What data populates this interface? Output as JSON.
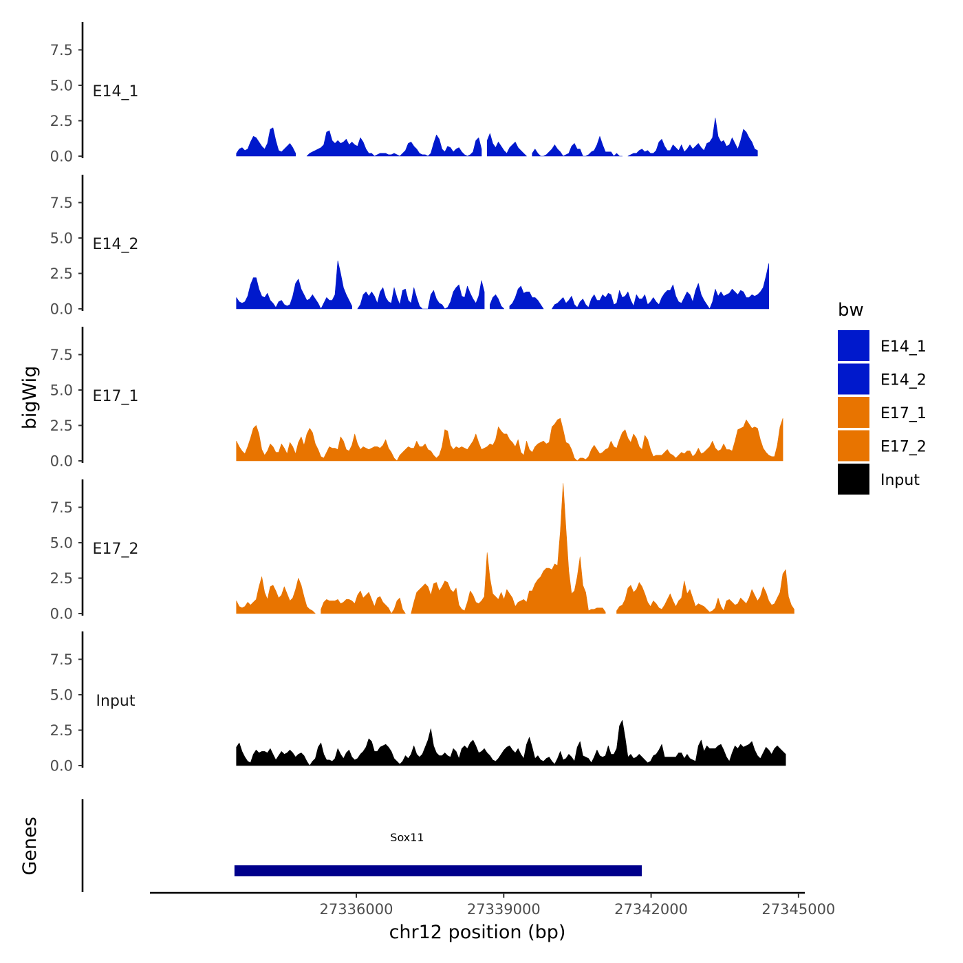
{
  "chart_data": {
    "type": "area",
    "title": "",
    "xlabel": "chr12 position (bp)",
    "ylabel": "bigWig",
    "genes_label": "Genes",
    "xlim": [
      27331800,
      27345100
    ],
    "ylim": [
      0,
      9.6
    ],
    "x_ticks": [
      27336000,
      27339000,
      27342000,
      27345000
    ],
    "x_tick_labels": [
      "27336000",
      "27339000",
      "27342000",
      "27345000"
    ],
    "y_ticks": [
      0,
      2.5,
      5,
      7.5
    ],
    "y_tick_labels": [
      "0.0",
      "2.5",
      "5.0",
      "7.5"
    ],
    "legend": {
      "title": "bw",
      "position": "right",
      "entries": [
        {
          "label": "E14_1",
          "color": "#0019CC"
        },
        {
          "label": "E14_2",
          "color": "#0019CC"
        },
        {
          "label": "E17_1",
          "color": "#E87400"
        },
        {
          "label": "E17_2",
          "color": "#E87400"
        },
        {
          "label": "Input",
          "color": "#000000"
        }
      ]
    },
    "gene": {
      "name": "Sox11",
      "start": 27333520,
      "end": 27341810,
      "color": "#00008B"
    },
    "x_start": 27333560,
    "x_step": 57.33,
    "series": [
      {
        "name": "E14_1",
        "color": "#0019CC",
        "values": [
          0.2,
          0.5,
          0.6,
          0.4,
          0.5,
          1.0,
          1.4,
          1.3,
          1.0,
          0.7,
          0.5,
          0.9,
          1.9,
          2.0,
          1.1,
          0.4,
          0.3,
          0.5,
          0.7,
          0.9,
          0.6,
          0.2,
          null,
          null,
          null,
          0.0,
          0.2,
          0.3,
          0.4,
          0.5,
          0.6,
          0.8,
          1.7,
          1.8,
          1.1,
          0.9,
          1.1,
          0.9,
          1.0,
          1.2,
          0.8,
          1.0,
          0.8,
          0.7,
          1.3,
          1.0,
          0.5,
          0.2,
          0.2,
          0.0,
          0.1,
          0.2,
          0.2,
          0.2,
          0.1,
          0.1,
          0.2,
          0.1,
          0.0,
          0.2,
          0.4,
          0.9,
          1.0,
          0.7,
          0.5,
          0.2,
          0.1,
          0.1,
          0.0,
          0.2,
          0.9,
          1.5,
          1.2,
          0.5,
          0.3,
          0.7,
          0.6,
          0.3,
          0.5,
          0.6,
          0.3,
          0.1,
          0.0,
          0.1,
          0.3,
          1.1,
          1.3,
          0.5,
          null,
          1.1,
          1.6,
          0.9,
          0.6,
          1.0,
          0.7,
          0.4,
          0.2,
          0.6,
          0.8,
          1.0,
          0.6,
          0.4,
          0.2,
          0.0,
          null,
          0.2,
          0.5,
          0.2,
          0.0,
          0.0,
          0.1,
          0.3,
          0.5,
          0.8,
          0.5,
          0.3,
          0.0,
          0.1,
          0.2,
          0.7,
          0.9,
          0.5,
          0.5,
          0.0,
          0.0,
          0.1,
          0.3,
          0.4,
          0.8,
          1.4,
          0.8,
          0.3,
          0.3,
          0.3,
          0.0,
          0.2,
          0.0,
          0.0,
          null,
          0.0,
          0.1,
          0.2,
          0.2,
          0.4,
          0.5,
          0.3,
          0.4,
          0.2,
          0.2,
          0.4,
          1.0,
          1.2,
          0.7,
          0.4,
          0.4,
          0.8,
          0.6,
          0.4,
          0.8,
          0.3,
          0.5,
          0.8,
          0.5,
          0.7,
          0.9,
          0.6,
          0.4,
          0.9,
          1.0,
          1.3,
          2.7,
          1.4,
          1.0,
          1.1,
          0.7,
          0.8,
          1.3,
          0.9,
          0.5,
          1.1,
          1.9,
          1.7,
          1.3,
          1.0,
          0.5,
          0.4
        ]
      },
      {
        "name": "E14_2",
        "color": "#0019CC",
        "values": [
          0.8,
          0.5,
          0.4,
          0.5,
          0.9,
          1.7,
          2.2,
          2.2,
          1.4,
          0.9,
          0.8,
          1.1,
          0.6,
          0.4,
          0.1,
          0.5,
          0.6,
          0.3,
          0.2,
          0.3,
          0.9,
          1.8,
          2.1,
          1.4,
          1.0,
          0.6,
          0.7,
          1.0,
          0.7,
          0.4,
          0.0,
          0.4,
          0.8,
          0.6,
          0.6,
          1.0,
          3.4,
          2.5,
          1.5,
          1.0,
          0.6,
          0.2,
          null,
          0.0,
          0.3,
          1.0,
          1.2,
          0.9,
          1.2,
          0.9,
          0.4,
          1.2,
          1.5,
          0.8,
          0.5,
          0.4,
          1.5,
          0.8,
          0.3,
          1.3,
          1.4,
          0.6,
          0.4,
          1.5,
          0.8,
          0.2,
          0.0,
          0.0,
          0.0,
          1.0,
          1.3,
          0.7,
          0.4,
          0.3,
          0.0,
          0.1,
          0.5,
          1.2,
          1.5,
          1.7,
          0.9,
          0.8,
          1.6,
          1.1,
          0.7,
          0.4,
          0.9,
          2.0,
          1.2,
          null,
          0.3,
          0.8,
          1.0,
          0.7,
          0.2,
          0.0,
          null,
          0.2,
          0.4,
          0.8,
          1.4,
          1.6,
          1.1,
          1.2,
          1.2,
          0.8,
          0.8,
          0.6,
          0.3,
          0.0,
          null,
          null,
          0.0,
          0.3,
          0.4,
          0.6,
          0.8,
          0.4,
          0.6,
          0.9,
          0.3,
          0.1,
          0.5,
          0.7,
          0.3,
          0.1,
          0.7,
          1.0,
          0.6,
          0.6,
          1.0,
          0.8,
          1.1,
          1.0,
          0.3,
          0.4,
          1.3,
          0.8,
          0.9,
          1.2,
          0.6,
          0.2,
          1.0,
          0.7,
          0.7,
          1.0,
          0.3,
          0.5,
          0.8,
          0.5,
          0.3,
          0.8,
          1.1,
          1.3,
          1.3,
          1.7,
          0.9,
          0.5,
          0.4,
          0.8,
          1.2,
          1.0,
          0.5,
          1.3,
          1.8,
          1.0,
          0.6,
          0.3,
          0.0,
          0.5,
          1.4,
          0.9,
          1.2,
          0.9,
          1.0,
          1.1,
          1.4,
          1.2,
          1.0,
          1.3,
          1.2,
          0.8,
          0.8,
          1.0,
          0.9,
          1.0,
          1.2,
          1.5,
          2.3,
          3.2
        ]
      },
      {
        "name": "E17_1",
        "color": "#E87400",
        "values": [
          1.4,
          1.0,
          0.7,
          0.5,
          1.0,
          1.6,
          2.3,
          2.5,
          1.9,
          0.8,
          0.4,
          0.7,
          1.2,
          1.0,
          0.6,
          0.6,
          1.2,
          0.9,
          0.5,
          1.3,
          1.0,
          0.5,
          1.3,
          1.7,
          1.1,
          1.9,
          2.3,
          2.0,
          1.2,
          0.8,
          0.3,
          0.2,
          0.6,
          1.0,
          0.9,
          0.9,
          0.8,
          1.7,
          1.4,
          0.8,
          0.7,
          1.1,
          1.9,
          1.2,
          0.8,
          1.0,
          0.9,
          0.8,
          0.9,
          1.0,
          1.0,
          0.9,
          1.1,
          1.5,
          0.9,
          0.6,
          0.2,
          0.0,
          0.4,
          0.6,
          0.8,
          1.0,
          0.9,
          0.9,
          1.4,
          1.0,
          1.0,
          1.2,
          0.8,
          0.7,
          0.4,
          0.2,
          0.4,
          1.0,
          2.2,
          2.1,
          1.1,
          0.8,
          1.0,
          0.9,
          1.0,
          0.9,
          0.8,
          1.1,
          1.4,
          1.9,
          1.3,
          0.8,
          0.9,
          1.0,
          1.2,
          1.1,
          1.5,
          2.4,
          2.1,
          1.9,
          1.9,
          1.5,
          1.3,
          1.0,
          1.5,
          0.6,
          0.4,
          1.4,
          0.8,
          0.6,
          1.0,
          1.2,
          1.3,
          1.4,
          1.2,
          1.3,
          2.4,
          2.6,
          2.9,
          3.0,
          2.2,
          1.3,
          1.2,
          0.8,
          0.2,
          0.0,
          0.2,
          0.2,
          0.1,
          0.3,
          0.8,
          1.1,
          0.8,
          0.5,
          0.6,
          0.8,
          0.9,
          1.4,
          1.0,
          0.9,
          1.5,
          2.0,
          2.2,
          1.6,
          1.3,
          1.9,
          1.6,
          1.0,
          0.8,
          1.8,
          1.5,
          0.8,
          0.3,
          0.4,
          0.4,
          0.4,
          0.6,
          0.8,
          0.5,
          0.4,
          0.2,
          0.4,
          0.6,
          0.5,
          0.7,
          0.7,
          0.3,
          0.5,
          0.9,
          0.5,
          0.6,
          0.8,
          1.0,
          1.4,
          0.9,
          0.7,
          0.8,
          1.2,
          0.8,
          0.8,
          0.7,
          1.4,
          2.2,
          2.3,
          2.4,
          2.9,
          2.6,
          2.3,
          2.4,
          2.3,
          1.5,
          0.9,
          0.6,
          0.4,
          0.3,
          0.3,
          1.1,
          2.4,
          3.0
        ]
      },
      {
        "name": "E17_2",
        "color": "#E87400",
        "values": [
          0.9,
          0.5,
          0.4,
          0.5,
          0.8,
          0.6,
          0.8,
          1.0,
          1.9,
          2.6,
          1.5,
          1.0,
          1.9,
          2.0,
          1.6,
          1.1,
          1.3,
          1.9,
          1.4,
          0.9,
          1.1,
          1.7,
          2.5,
          2.0,
          1.2,
          0.5,
          0.3,
          0.2,
          0.0,
          null,
          0.3,
          0.8,
          1.0,
          0.9,
          0.9,
          0.9,
          1.0,
          0.7,
          0.8,
          1.0,
          1.0,
          0.9,
          0.7,
          1.3,
          1.6,
          1.1,
          1.3,
          1.5,
          1.0,
          0.5,
          1.1,
          1.2,
          0.8,
          0.6,
          0.4,
          0.0,
          0.3,
          0.9,
          1.1,
          0.3,
          0.0,
          null,
          0.0,
          0.8,
          1.5,
          1.7,
          1.9,
          2.1,
          1.9,
          1.3,
          2.1,
          2.2,
          1.6,
          1.9,
          2.3,
          2.2,
          1.7,
          1.5,
          1.8,
          0.6,
          0.3,
          0.2,
          0.8,
          1.6,
          1.3,
          0.8,
          0.7,
          0.9,
          1.2,
          4.3,
          2.5,
          1.4,
          1.2,
          1.0,
          1.5,
          1.0,
          1.7,
          1.4,
          1.1,
          0.5,
          0.8,
          0.9,
          1.0,
          0.8,
          1.6,
          1.6,
          2.1,
          2.4,
          2.6,
          3.0,
          3.2,
          3.2,
          3.1,
          3.5,
          3.4,
          5.8,
          9.2,
          6.0,
          3.0,
          1.4,
          1.6,
          2.6,
          4.0,
          2.0,
          1.5,
          0.2,
          0.3,
          0.3,
          0.4,
          0.4,
          0.4,
          0.1,
          null,
          null,
          null,
          0.2,
          0.5,
          0.6,
          1.0,
          1.8,
          2.0,
          1.5,
          1.7,
          2.2,
          1.9,
          1.4,
          0.8,
          0.5,
          0.9,
          0.7,
          0.4,
          0.3,
          0.6,
          1.0,
          1.4,
          0.9,
          0.5,
          0.9,
          1.1,
          2.3,
          1.4,
          1.7,
          1.1,
          0.5,
          0.7,
          0.6,
          0.5,
          0.3,
          0.1,
          0.2,
          0.4,
          1.1,
          0.5,
          0.2,
          0.9,
          1.0,
          0.8,
          0.6,
          0.7,
          1.1,
          0.9,
          0.7,
          1.1,
          1.7,
          1.3,
          0.9,
          1.2,
          1.9,
          1.5,
          0.9,
          0.6,
          0.7,
          1.1,
          1.5,
          2.8,
          3.1,
          1.2,
          0.6,
          0.3
        ]
      },
      {
        "name": "Input",
        "color": "#000000",
        "values": [
          1.3,
          1.6,
          1.0,
          0.6,
          0.3,
          0.2,
          0.8,
          1.1,
          0.9,
          1.0,
          1.0,
          0.9,
          1.2,
          0.8,
          0.4,
          0.7,
          1.0,
          0.8,
          0.9,
          1.1,
          0.9,
          0.6,
          0.8,
          0.9,
          0.7,
          0.3,
          0.0,
          0.3,
          0.5,
          1.3,
          1.6,
          0.8,
          0.4,
          0.4,
          0.3,
          0.5,
          1.2,
          0.8,
          0.5,
          0.9,
          1.1,
          0.6,
          0.4,
          0.5,
          0.8,
          1.0,
          1.3,
          1.9,
          1.7,
          1.0,
          1.0,
          1.3,
          1.4,
          1.5,
          1.3,
          1.0,
          0.5,
          0.3,
          0.1,
          0.3,
          0.7,
          0.5,
          0.8,
          1.4,
          0.8,
          0.6,
          0.8,
          1.3,
          1.8,
          2.6,
          1.4,
          0.9,
          0.7,
          0.7,
          0.9,
          0.7,
          0.6,
          1.2,
          1.0,
          0.5,
          1.2,
          1.4,
          1.2,
          1.6,
          1.8,
          1.4,
          0.9,
          1.0,
          1.2,
          0.9,
          0.7,
          0.4,
          0.3,
          0.5,
          0.8,
          1.1,
          1.3,
          1.4,
          1.1,
          0.9,
          1.2,
          0.8,
          0.5,
          1.5,
          2.0,
          1.3,
          0.5,
          0.7,
          0.4,
          0.3,
          0.5,
          0.6,
          0.3,
          0.1,
          0.5,
          1.0,
          0.4,
          0.5,
          0.8,
          0.6,
          0.3,
          1.3,
          1.7,
          0.7,
          0.6,
          0.5,
          0.2,
          0.6,
          1.1,
          0.7,
          0.6,
          0.7,
          1.4,
          0.8,
          0.8,
          1.2,
          2.8,
          3.2,
          2.0,
          0.6,
          0.8,
          0.5,
          0.6,
          0.8,
          0.6,
          0.4,
          0.2,
          0.3,
          0.7,
          0.8,
          1.1,
          1.5,
          0.6,
          0.6,
          0.6,
          0.6,
          0.6,
          0.9,
          0.9,
          0.5,
          0.8,
          0.5,
          0.4,
          0.3,
          1.4,
          1.8,
          1.0,
          1.4,
          1.2,
          1.2,
          1.2,
          1.4,
          1.5,
          1.1,
          0.6,
          0.3,
          0.9,
          1.4,
          1.2,
          1.5,
          1.3,
          1.4,
          1.5,
          1.7,
          1.1,
          0.7,
          0.5,
          0.9,
          1.3,
          1.1,
          0.8,
          1.2,
          1.4,
          1.2,
          1.0,
          0.8
        ]
      }
    ]
  }
}
